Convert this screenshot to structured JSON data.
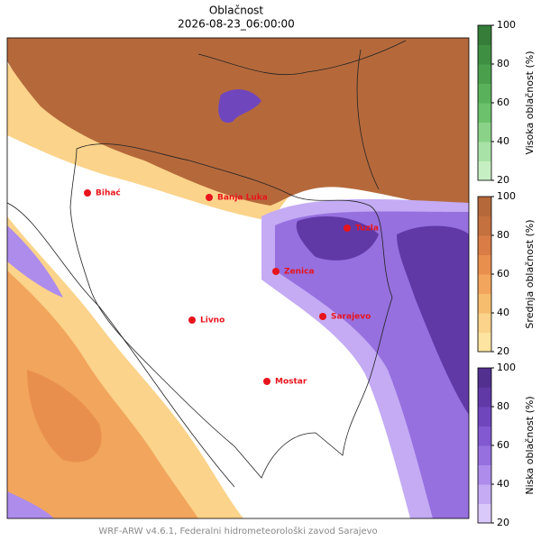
{
  "title": "Oblačnost",
  "subtitle": "2026-08-23_06:00:00",
  "cities": [
    "Bihać",
    "Banja Luka",
    "Tuzla",
    "Zenica",
    "Sarajevo",
    "Livno",
    "Mostar"
  ],
  "colorbars": [
    {
      "label": "Visoka oblačnost (%)",
      "range": [
        20,
        100
      ],
      "ticks": [
        20,
        40,
        60,
        80,
        100
      ],
      "colors": [
        "#c7efc4",
        "#a9e2a6",
        "#8ad288",
        "#6cc26c",
        "#59b25b",
        "#4a9f4d",
        "#3f8f43",
        "#357d39"
      ]
    },
    {
      "label": "Srednja oblačnost (%)",
      "range": [
        20,
        100
      ],
      "ticks": [
        20,
        40,
        60,
        80,
        100
      ],
      "colors": [
        "#fde4a0",
        "#fbd38a",
        "#f7bd6f",
        "#f2a55c",
        "#e98f4e",
        "#d97c45",
        "#c4703f",
        "#b5693b"
      ]
    },
    {
      "label": "Niska oblačnost (%)",
      "range": [
        20,
        100
      ],
      "ticks": [
        20,
        40,
        60,
        80,
        100
      ],
      "colors": [
        "#d9c8fa",
        "#c4abf4",
        "#ad8ceb",
        "#9670df",
        "#8259d0",
        "#7046bd",
        "#6039a7",
        "#523090"
      ]
    }
  ],
  "footer": "WRF-ARW v4.6.1, Federalni hidrometeorološki zavod Sarajevo"
}
